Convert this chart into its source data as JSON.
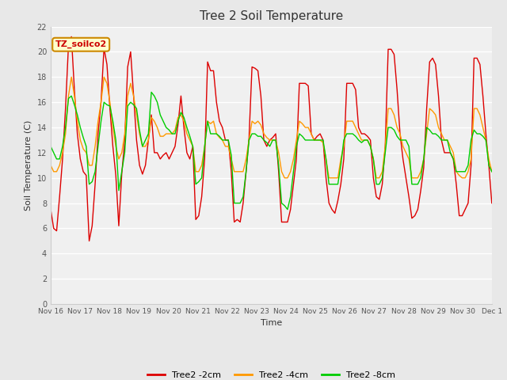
{
  "title": "Tree 2 Soil Temperature",
  "xlabel": "Time",
  "ylabel": "Soil Temperature (C)",
  "ylim": [
    0,
    22
  ],
  "yticks": [
    0,
    2,
    4,
    6,
    8,
    10,
    12,
    14,
    16,
    18,
    20,
    22
  ],
  "bg_color": "#e8e8e8",
  "plot_bg_color": "#f0f0f0",
  "legend_label": "TZ_soilco2",
  "series_labels": [
    "Tree2 -2cm",
    "Tree2 -4cm",
    "Tree2 -8cm"
  ],
  "series_colors": [
    "#dd0000",
    "#ff9900",
    "#00cc00"
  ],
  "xtick_labels": [
    "Nov 16",
    "Nov 17",
    "Nov 18",
    "Nov 19",
    "Nov 20",
    "Nov 21",
    "Nov 22",
    "Nov 23",
    "Nov 24",
    "Nov 25",
    "Nov 26",
    "Nov 27",
    "Nov 28",
    "Nov 29",
    "Nov 30",
    "Dec 1"
  ],
  "red_data": [
    7.5,
    6.0,
    5.8,
    8.5,
    11.5,
    15.5,
    20.5,
    21.2,
    17.0,
    13.5,
    11.5,
    10.5,
    10.2,
    5.0,
    6.2,
    9.5,
    13.5,
    16.0,
    20.3,
    19.0,
    15.5,
    12.5,
    10.2,
    6.2,
    10.3,
    13.0,
    18.8,
    20.0,
    16.5,
    13.0,
    11.0,
    10.3,
    11.0,
    13.0,
    15.0,
    12.0,
    12.0,
    11.5,
    11.8,
    12.0,
    11.5,
    12.0,
    12.5,
    14.2,
    16.5,
    14.0,
    12.0,
    11.5,
    12.5,
    6.7,
    7.0,
    8.5,
    11.5,
    19.2,
    18.5,
    18.5,
    16.0,
    14.5,
    14.0,
    13.0,
    13.0,
    10.5,
    6.5,
    6.7,
    6.5,
    8.0,
    10.5,
    13.2,
    18.8,
    18.7,
    18.5,
    16.5,
    13.0,
    12.5,
    13.0,
    13.2,
    13.5,
    10.5,
    6.5,
    6.5,
    6.5,
    7.5,
    9.5,
    11.5,
    17.5,
    17.5,
    17.5,
    17.3,
    13.5,
    13.0,
    13.3,
    13.5,
    13.0,
    10.0,
    8.0,
    7.5,
    7.2,
    8.2,
    9.5,
    11.5,
    17.5,
    17.5,
    17.5,
    17.0,
    14.0,
    13.5,
    13.5,
    13.3,
    13.0,
    10.0,
    8.5,
    8.3,
    9.5,
    12.5,
    20.2,
    20.2,
    19.8,
    17.0,
    13.5,
    11.5,
    10.0,
    8.5,
    6.8,
    7.0,
    7.5,
    9.0,
    10.8,
    15.5,
    19.2,
    19.5,
    19.0,
    16.5,
    13.0,
    12.0,
    12.0,
    12.0,
    11.5,
    9.5,
    7.0,
    7.0,
    7.5,
    8.0,
    11.0,
    19.5,
    19.5,
    19.0,
    16.5,
    13.5,
    11.0,
    8.0
  ],
  "orange_data": [
    11.0,
    10.5,
    10.5,
    11.0,
    12.0,
    13.5,
    16.5,
    18.0,
    16.5,
    14.5,
    13.0,
    12.3,
    12.0,
    11.0,
    11.0,
    12.5,
    14.5,
    16.0,
    18.0,
    17.5,
    16.0,
    14.0,
    12.5,
    11.5,
    12.0,
    13.5,
    16.5,
    17.5,
    16.5,
    15.0,
    13.5,
    12.5,
    12.5,
    13.0,
    14.8,
    14.5,
    14.0,
    13.3,
    13.3,
    13.5,
    13.5,
    13.5,
    13.8,
    14.8,
    15.0,
    14.5,
    13.5,
    13.0,
    12.5,
    10.5,
    10.5,
    11.0,
    12.5,
    14.5,
    14.3,
    14.5,
    13.5,
    13.2,
    13.0,
    12.5,
    12.5,
    11.5,
    10.5,
    10.5,
    10.5,
    10.5,
    11.5,
    13.0,
    14.5,
    14.3,
    14.5,
    14.2,
    13.5,
    13.2,
    13.0,
    13.0,
    13.0,
    12.0,
    10.5,
    10.0,
    10.0,
    10.5,
    11.5,
    13.0,
    14.5,
    14.3,
    14.0,
    14.0,
    13.5,
    13.0,
    13.0,
    13.0,
    12.8,
    11.5,
    10.0,
    10.0,
    10.0,
    10.0,
    11.5,
    12.5,
    14.5,
    14.5,
    14.5,
    14.0,
    13.5,
    13.0,
    13.0,
    13.0,
    12.5,
    11.5,
    10.0,
    10.0,
    10.5,
    12.5,
    15.5,
    15.5,
    15.0,
    14.0,
    13.5,
    12.5,
    12.0,
    11.5,
    10.0,
    10.0,
    10.0,
    10.5,
    11.5,
    13.5,
    15.5,
    15.3,
    15.0,
    14.0,
    13.5,
    13.0,
    13.0,
    12.5,
    12.0,
    10.5,
    10.2,
    10.0,
    10.0,
    10.5,
    11.5,
    15.5,
    15.5,
    15.0,
    14.0,
    13.0,
    11.5,
    10.5
  ],
  "green_data": [
    12.5,
    12.0,
    11.5,
    11.5,
    12.5,
    14.0,
    16.3,
    16.5,
    15.8,
    15.0,
    14.0,
    13.2,
    12.5,
    9.5,
    9.7,
    10.5,
    12.5,
    14.5,
    16.0,
    15.8,
    15.7,
    14.5,
    13.0,
    9.0,
    10.5,
    12.0,
    15.7,
    16.0,
    15.8,
    15.5,
    13.8,
    12.5,
    13.0,
    13.5,
    16.8,
    16.5,
    16.0,
    15.0,
    14.5,
    14.0,
    13.8,
    13.5,
    13.5,
    14.5,
    15.2,
    14.8,
    14.0,
    13.3,
    12.5,
    9.5,
    9.7,
    10.0,
    12.5,
    14.5,
    13.5,
    13.5,
    13.5,
    13.3,
    13.0,
    13.0,
    13.0,
    11.8,
    8.0,
    8.0,
    8.0,
    8.5,
    10.5,
    13.0,
    13.5,
    13.5,
    13.3,
    13.3,
    13.0,
    12.8,
    12.5,
    13.0,
    13.0,
    11.0,
    8.0,
    7.8,
    7.5,
    8.5,
    10.5,
    12.5,
    13.5,
    13.3,
    13.0,
    13.0,
    13.0,
    13.0,
    13.0,
    13.0,
    13.0,
    11.5,
    9.5,
    9.5,
    9.5,
    9.5,
    11.0,
    13.0,
    13.5,
    13.5,
    13.5,
    13.3,
    13.0,
    12.8,
    13.0,
    13.0,
    12.5,
    11.5,
    9.5,
    9.5,
    10.0,
    12.0,
    14.0,
    14.0,
    13.8,
    13.3,
    13.0,
    13.0,
    13.0,
    12.5,
    9.5,
    9.5,
    9.5,
    10.0,
    11.5,
    14.0,
    13.8,
    13.5,
    13.5,
    13.3,
    13.0,
    13.0,
    13.0,
    12.0,
    11.5,
    10.5,
    10.5,
    10.5,
    10.5,
    11.0,
    13.0,
    13.8,
    13.5,
    13.5,
    13.3,
    13.0,
    11.0,
    10.5
  ]
}
